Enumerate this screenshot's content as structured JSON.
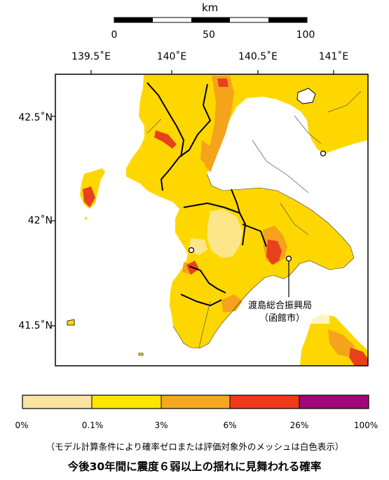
{
  "scale_bar": {
    "unit": "km",
    "ticks": [
      "0",
      "50",
      "100"
    ]
  },
  "axes": {
    "longitude_labels": [
      "139.5˚E",
      "140˚E",
      "140.5˚E",
      "141˚E"
    ],
    "latitude_labels": [
      "42.5˚N",
      "42˚N",
      "41.5˚N"
    ]
  },
  "map": {
    "callout_label_line1": "渡島総合振興局",
    "callout_label_line2": "（函館市）",
    "colors": {
      "sea": "#ffffff",
      "land_main": "#ffd700",
      "land_low": "#fde68a",
      "land_mid": "#f5a31a",
      "land_high": "#e8401c",
      "land_top": "#a3087a",
      "boundary": "#000000"
    }
  },
  "legend": {
    "ticks": [
      "0%",
      "0.1%",
      "3%",
      "6%",
      "26%",
      "100%"
    ],
    "colors": [
      "#fbe3a0",
      "#ffe600",
      "#f6a71f",
      "#ee3a16",
      "#a3087a"
    ],
    "note": "（モデル計算条件により確率ゼロまたは評価対象外のメッシュは白色表示）"
  },
  "title": "今後30年間に震度６弱以上の揺れに見舞われる確率"
}
